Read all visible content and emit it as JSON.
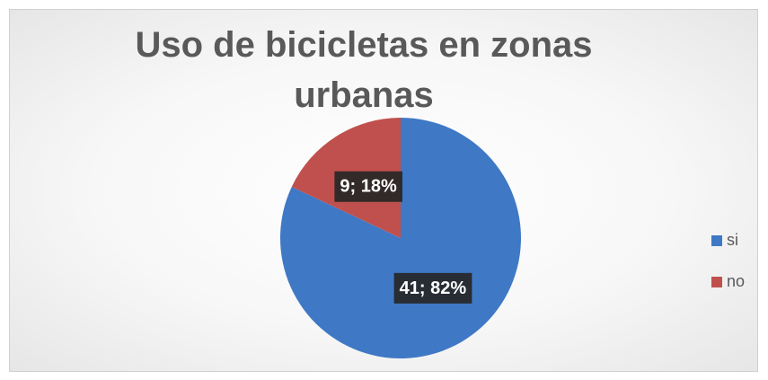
{
  "chart_data": {
    "type": "pie",
    "title": "Uso de bicicletas en zonas urbanas",
    "categories": [
      "si",
      "no"
    ],
    "values": [
      41,
      9
    ],
    "value_labels": [
      "41; 82%",
      "9; 18%"
    ],
    "colors": [
      "#3f78c5",
      "#c0504d"
    ],
    "legend": "right"
  }
}
